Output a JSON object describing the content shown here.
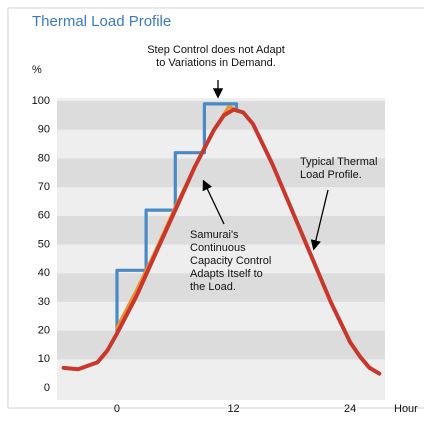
{
  "chart_data": {
    "type": "line",
    "title": "Thermal Load Profile",
    "ylabel": "%",
    "xlabel": "Hour",
    "ylim": [
      0,
      100
    ],
    "yticks": [
      0,
      10,
      20,
      30,
      40,
      50,
      60,
      70,
      80,
      90,
      100
    ],
    "xlim": [
      -6,
      28
    ],
    "xticks": [
      0,
      12,
      24
    ],
    "series": [
      {
        "color": "#c7372c",
        "x": [
          -5.5,
          -4,
          -2,
          -1,
          0,
          2,
          4,
          6,
          8,
          10,
          11,
          12,
          13,
          14,
          16,
          18,
          20,
          22,
          24,
          25,
          26,
          27
        ],
        "values": [
          7,
          6.5,
          9,
          13,
          19,
          32,
          47,
          62,
          77,
          90,
          95,
          97,
          96,
          92,
          78,
          62,
          46,
          30,
          16,
          11,
          7,
          5
        ]
      },
      {
        "color": "#4a8ac4",
        "x": [
          0,
          0,
          3,
          3,
          6,
          6,
          9,
          9,
          12.3,
          12.3
        ],
        "values": [
          20,
          41,
          41,
          62,
          62,
          82,
          82,
          99,
          99,
          97
        ]
      },
      {
        "color": "#ea9330",
        "x": [
          0,
          2,
          4,
          6,
          8,
          10,
          11.5,
          12.3
        ],
        "values": [
          21,
          34,
          48,
          63,
          77,
          90,
          98,
          97
        ]
      }
    ],
    "annotations": [
      {
        "lines": [
          "Step Control does not Adapt",
          "to Variations in Demand."
        ]
      },
      {
        "lines": [
          "Typical Thermal",
          "Load Profile."
        ]
      },
      {
        "lines": [
          "Samurai's",
          "Continuous",
          "Capacity Control",
          "Adapts Itself to",
          "the Load."
        ]
      }
    ]
  }
}
